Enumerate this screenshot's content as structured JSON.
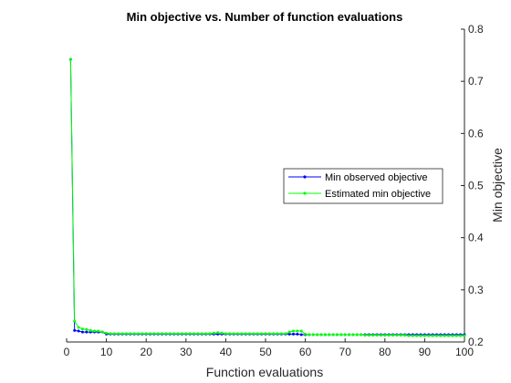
{
  "chart_data": {
    "type": "line",
    "title": "Min objective vs. Number of function evaluations",
    "xlabel": "Function evaluations",
    "ylabel": "Min objective",
    "xlim": [
      0,
      100
    ],
    "ylim": [
      0.2,
      0.8
    ],
    "xticks": [
      "0",
      "10",
      "20",
      "30",
      "40",
      "50",
      "60",
      "70",
      "80",
      "90",
      "100"
    ],
    "yticks": [
      "0.2",
      "0.3",
      "0.4",
      "0.5",
      "0.6",
      "0.7",
      "0.8"
    ],
    "y_axis_side": "right",
    "grid": false,
    "legend_position": "right-middle",
    "series": [
      {
        "name": "Min observed objective",
        "color": "#0000ff",
        "x": [
          1,
          2,
          3,
          4,
          5,
          6,
          7,
          8,
          9,
          10,
          11,
          12,
          13,
          14,
          15,
          16,
          17,
          18,
          19,
          20,
          21,
          22,
          23,
          24,
          25,
          26,
          27,
          28,
          29,
          30,
          31,
          32,
          33,
          34,
          35,
          36,
          37,
          38,
          39,
          40,
          41,
          42,
          43,
          44,
          45,
          46,
          47,
          48,
          49,
          50,
          51,
          52,
          53,
          54,
          55,
          56,
          57,
          58,
          59,
          60,
          61,
          62,
          63,
          64,
          65,
          66,
          67,
          68,
          69,
          70,
          71,
          72,
          73,
          74,
          75,
          76,
          77,
          78,
          79,
          80,
          81,
          82,
          83,
          84,
          85,
          86,
          87,
          88,
          89,
          90,
          91,
          92,
          93,
          94,
          95,
          96,
          97,
          98,
          99,
          100
        ],
        "y": [
          0.742,
          0.222,
          0.221,
          0.219,
          0.219,
          0.219,
          0.219,
          0.219,
          0.219,
          0.215,
          0.215,
          0.215,
          0.215,
          0.215,
          0.215,
          0.215,
          0.215,
          0.215,
          0.215,
          0.215,
          0.215,
          0.215,
          0.215,
          0.215,
          0.215,
          0.215,
          0.215,
          0.215,
          0.215,
          0.215,
          0.215,
          0.215,
          0.215,
          0.215,
          0.215,
          0.215,
          0.215,
          0.215,
          0.215,
          0.215,
          0.215,
          0.215,
          0.215,
          0.215,
          0.215,
          0.215,
          0.215,
          0.215,
          0.215,
          0.215,
          0.215,
          0.215,
          0.215,
          0.215,
          0.215,
          0.215,
          0.215,
          0.215,
          0.214,
          0.214,
          0.214,
          0.214,
          0.214,
          0.214,
          0.214,
          0.214,
          0.214,
          0.214,
          0.214,
          0.214,
          0.214,
          0.214,
          0.214,
          0.214,
          0.214,
          0.214,
          0.214,
          0.214,
          0.214,
          0.214,
          0.214,
          0.214,
          0.214,
          0.214,
          0.214,
          0.214,
          0.214,
          0.214,
          0.214,
          0.214,
          0.214,
          0.214,
          0.214,
          0.214,
          0.214,
          0.214,
          0.214,
          0.214,
          0.214,
          0.214
        ]
      },
      {
        "name": "Estimated min objective",
        "color": "#00ff00",
        "x": [
          1,
          2,
          3,
          4,
          5,
          6,
          7,
          8,
          9,
          10,
          11,
          12,
          13,
          14,
          15,
          16,
          17,
          18,
          19,
          20,
          21,
          22,
          23,
          24,
          25,
          26,
          27,
          28,
          29,
          30,
          31,
          32,
          33,
          34,
          35,
          36,
          37,
          38,
          39,
          40,
          41,
          42,
          43,
          44,
          45,
          46,
          47,
          48,
          49,
          50,
          51,
          52,
          53,
          54,
          55,
          56,
          57,
          58,
          59,
          60,
          61,
          62,
          63,
          64,
          65,
          66,
          67,
          68,
          69,
          70,
          71,
          72,
          73,
          74,
          75,
          76,
          77,
          78,
          79,
          80,
          81,
          82,
          83,
          84,
          85,
          86,
          87,
          88,
          89,
          90,
          91,
          92,
          93,
          94,
          95,
          96,
          97,
          98,
          99,
          100
        ],
        "y": [
          0.742,
          0.24,
          0.228,
          0.225,
          0.224,
          0.222,
          0.221,
          0.221,
          0.219,
          0.217,
          0.216,
          0.216,
          0.216,
          0.216,
          0.216,
          0.216,
          0.216,
          0.216,
          0.216,
          0.216,
          0.216,
          0.216,
          0.216,
          0.216,
          0.216,
          0.216,
          0.216,
          0.216,
          0.216,
          0.216,
          0.216,
          0.216,
          0.216,
          0.216,
          0.216,
          0.216,
          0.217,
          0.218,
          0.217,
          0.216,
          0.216,
          0.216,
          0.216,
          0.216,
          0.216,
          0.216,
          0.216,
          0.216,
          0.216,
          0.216,
          0.216,
          0.216,
          0.216,
          0.216,
          0.216,
          0.219,
          0.221,
          0.221,
          0.221,
          0.215,
          0.214,
          0.214,
          0.214,
          0.214,
          0.214,
          0.214,
          0.214,
          0.214,
          0.214,
          0.214,
          0.214,
          0.214,
          0.214,
          0.214,
          0.213,
          0.213,
          0.213,
          0.213,
          0.213,
          0.213,
          0.213,
          0.213,
          0.213,
          0.213,
          0.213,
          0.212,
          0.212,
          0.212,
          0.212,
          0.212,
          0.212,
          0.212,
          0.212,
          0.212,
          0.212,
          0.212,
          0.212,
          0.212,
          0.212,
          0.212
        ]
      }
    ]
  }
}
